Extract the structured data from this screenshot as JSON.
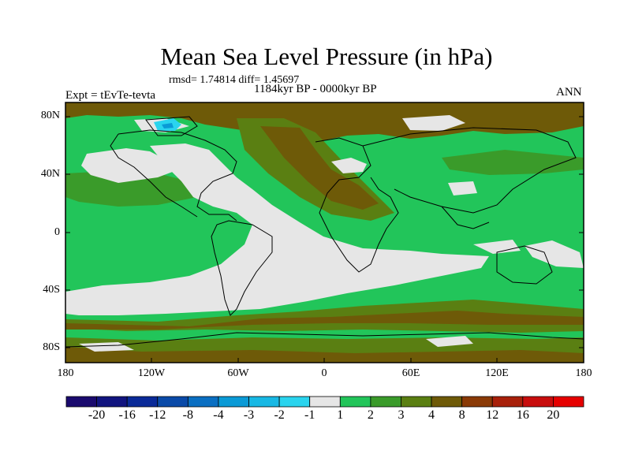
{
  "header": {
    "title": "Mean Sea Level Pressure (in hPa)",
    "stats": "rmsd= 1.74814 diff= 1.45697",
    "period": "1184kyr BP - 0000kyr BP",
    "experiment": "Expt = tEvTe-tevta",
    "season": "ANN"
  },
  "map": {
    "lat_ticks": [
      "80N",
      "40N",
      "0",
      "40S",
      "80S"
    ],
    "lon_ticks": [
      "180",
      "120W",
      "60W",
      "0",
      "60E",
      "120E",
      "180"
    ]
  },
  "colorbar": {
    "labels": [
      "-20",
      "-16",
      "-12",
      "-8",
      "-4",
      "-3",
      "-2",
      "-1",
      "1",
      "2",
      "3",
      "4",
      "8",
      "12",
      "16",
      "20"
    ],
    "colors": [
      "#1a0a6e",
      "#11147f",
      "#0a2a98",
      "#0a4aa8",
      "#0a6fc2",
      "#0a9ad6",
      "#18b8e4",
      "#2ad4ee",
      "#e6e6e6",
      "#22c55a",
      "#3a9b2a",
      "#5a7f12",
      "#6e5a08",
      "#8a3a06",
      "#a8200a",
      "#c80d0d",
      "#e60000"
    ]
  }
}
